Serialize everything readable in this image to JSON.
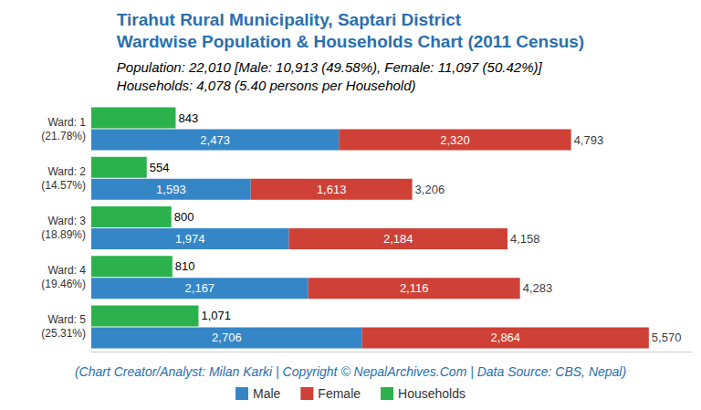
{
  "chart_data": {
    "type": "bar",
    "orientation": "horizontal",
    "data_labels": true,
    "tick_labels": "y",
    "grid": false,
    "legend": "bottom",
    "title": "Tirahut Rural Municipality, Saptari District\nWardwise Population & Households Chart (2011 Census)",
    "subtitle": "Population: 22,010 [Male: 10,913 (49.58%), Female: 11,097 (50.42%)]\nHouseholds: 4,078 (5.40 persons per Household)",
    "caption": "(Chart Creator/Analyst: Milan Karki | Copyright © NepalArchives.Com | Data Source: CBS, Nepal)",
    "categories": [
      "Ward: 1\n(21.78%)",
      "Ward: 2\n(14.57%)",
      "Ward: 3\n(18.89%)",
      "Ward: 4\n(19.46%)",
      "Ward: 5\n(25.31%)"
    ],
    "xlim": [
      0,
      6000
    ],
    "series": [
      {
        "name": "Male",
        "color": "#3586c6",
        "stacked": true,
        "values": [
          2473,
          1593,
          1974,
          2167,
          2706
        ],
        "value_labels": [
          "2,473",
          "1,593",
          "1,974",
          "2,167",
          "2,706"
        ]
      },
      {
        "name": "Female",
        "color": "#cf4136",
        "stacked": true,
        "values": [
          2320,
          1613,
          2184,
          2116,
          2864
        ],
        "value_labels": [
          "2,320",
          "1,613",
          "2,184",
          "2,116",
          "2,864"
        ]
      },
      {
        "name": "Households",
        "color": "#2bb24c",
        "stacked": false,
        "values": [
          843,
          554,
          800,
          810,
          1071
        ],
        "value_labels": [
          "843",
          "554",
          "800",
          "810",
          "1,071"
        ]
      }
    ],
    "totals": {
      "values": [
        4793,
        3206,
        4158,
        4283,
        5570
      ],
      "value_labels": [
        "4,793",
        "3,206",
        "4,158",
        "4,283",
        "5,570"
      ]
    }
  }
}
